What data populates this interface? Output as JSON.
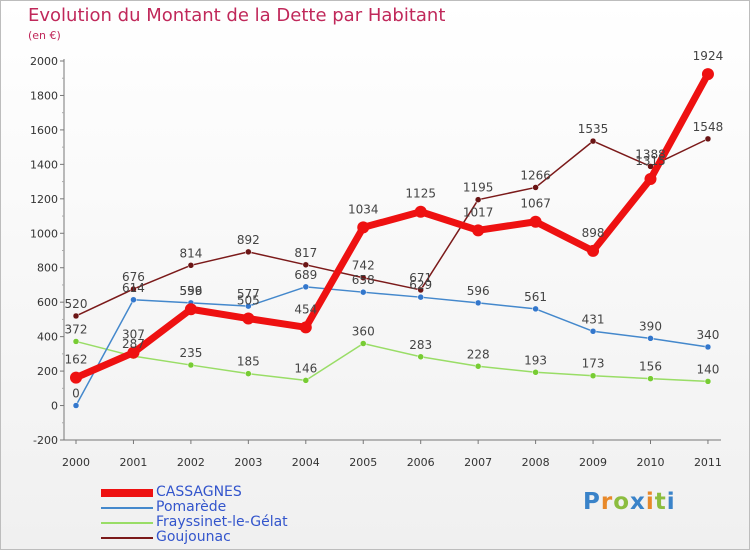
{
  "title": "Evolution du Montant de la Dette par Habitant",
  "subtitle": "(en €)",
  "logo": {
    "text": "Proxiti",
    "letters": [
      {
        "ch": "P",
        "color": "#3a83c9"
      },
      {
        "ch": "r",
        "color": "#e8892a"
      },
      {
        "ch": "o",
        "color": "#8cbd3f"
      },
      {
        "ch": "x",
        "color": "#3a83c9"
      },
      {
        "ch": "i",
        "color": "#e8892a"
      },
      {
        "ch": "t",
        "color": "#8cbd3f"
      },
      {
        "ch": "i",
        "color": "#3a83c9"
      }
    ]
  },
  "chart_data": {
    "type": "line",
    "title": "Evolution du Montant de la Dette par Habitant",
    "subtitle": "(en €)",
    "xlabel": "",
    "ylabel": "",
    "ylim": [
      -200,
      2000
    ],
    "yticks": [
      -200,
      0,
      200,
      400,
      600,
      800,
      1000,
      1200,
      1400,
      1600,
      1800,
      2000
    ],
    "x": [
      "2000",
      "2001",
      "2002",
      "2003",
      "2004",
      "2005",
      "2006",
      "2007",
      "2008",
      "2009",
      "2010",
      "2011"
    ],
    "grid": "none",
    "legend_position": "bottom-left",
    "series": [
      {
        "name": "Goujounac",
        "color": "#7b1a1a",
        "values": [
          520,
          676,
          814,
          892,
          817,
          742,
          671,
          1195,
          1266,
          1535,
          1388,
          1548
        ]
      },
      {
        "name": "Frayssinet-le-Gélat",
        "color": "#99dd66",
        "values": [
          372,
          287,
          235,
          185,
          146,
          360,
          283,
          228,
          193,
          173,
          156,
          140
        ]
      },
      {
        "name": "Pomarède",
        "color": "#4488cc",
        "values": [
          0,
          614,
          596,
          577,
          689,
          658,
          629,
          596,
          561,
          431,
          390,
          340
        ]
      },
      {
        "name": "CASSAGNES",
        "color": "#ee1111",
        "values": [
          162,
          307,
          559,
          505,
          454,
          1034,
          1125,
          1017,
          1067,
          898,
          1315,
          1924
        ]
      }
    ],
    "data_labels": {
      "CASSAGNES": [
        "162",
        "307",
        "559",
        "505",
        "454",
        "1034",
        "1125",
        "1017",
        "1067",
        "898",
        "1315",
        "1924"
      ],
      "Pomarède": [
        "0",
        "614",
        "596",
        "577",
        "689",
        "658",
        "629",
        "596",
        "561",
        "431",
        "390",
        "340"
      ],
      "Frayssinet-le-Gélat": [
        "372",
        "287",
        "235",
        "185",
        "146",
        "360",
        "283",
        "228",
        "193",
        "173",
        "156",
        "140"
      ],
      "Goujounac": [
        "520",
        "676",
        "814",
        "892",
        "817",
        "742",
        "671",
        "1195",
        "1266",
        "1535",
        "1388",
        "1548"
      ]
    }
  },
  "legend": [
    {
      "name": "CASSAGNES",
      "color": "#ee1111",
      "text_color": "#3355cc",
      "thick": true
    },
    {
      "name": "Pomarède",
      "color": "#4488cc",
      "text_color": "#3355cc",
      "thick": false
    },
    {
      "name": "Frayssinet-le-Gélat",
      "color": "#99dd66",
      "text_color": "#3355cc",
      "thick": false
    },
    {
      "name": "Goujounac",
      "color": "#7b1a1a",
      "text_color": "#3355cc",
      "thick": false
    }
  ]
}
